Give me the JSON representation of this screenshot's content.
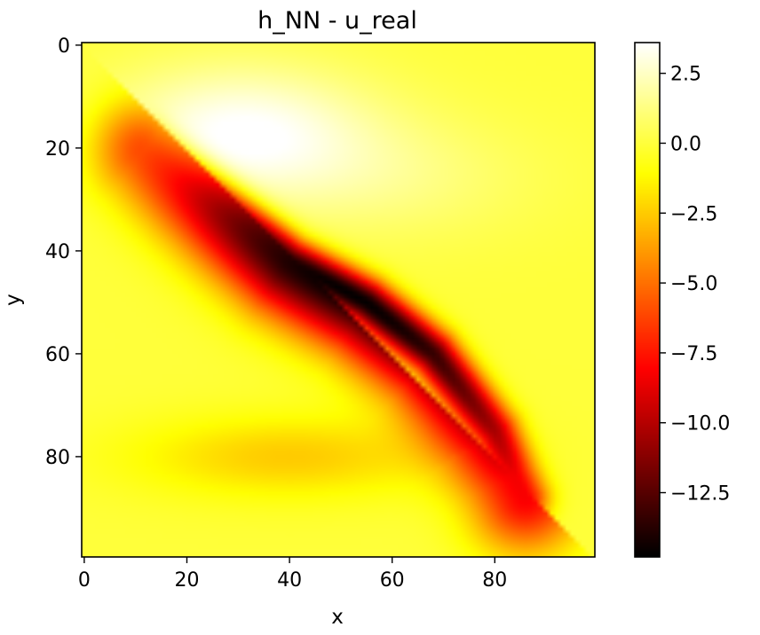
{
  "chart_data": {
    "type": "heatmap",
    "title": "h_NN - u_real",
    "xlabel": "x",
    "ylabel": "y",
    "xlim": [
      0,
      99
    ],
    "ylim": [
      0,
      99
    ],
    "y_inverted": true,
    "x_ticks": [
      "0",
      "20",
      "40",
      "60",
      "80"
    ],
    "y_ticks": [
      "0",
      "20",
      "40",
      "60",
      "80"
    ],
    "colormap": "hot",
    "colorbar": {
      "vmin": -14.8,
      "vmax": 3.6,
      "tick_values": [
        2.5,
        0.0,
        -2.5,
        -5.0,
        -7.5,
        -10.0,
        -12.5
      ],
      "tick_labels": [
        "2.5",
        "0.0",
        "−2.5",
        "−5.0",
        "−7.5",
        "−10.0",
        "−12.5"
      ]
    },
    "field_description": {
      "background_value": 0.0,
      "features": [
        {
          "name": "positive_lobe",
          "center": [
            30,
            17
          ],
          "peak": 3.6
        },
        {
          "name": "negative_trough",
          "path": [
            [
              12,
              20
            ],
            [
              25,
              30
            ],
            [
              40,
              42
            ],
            [
              55,
              50
            ],
            [
              68,
              60
            ],
            [
              80,
              75
            ],
            [
              86,
              88
            ]
          ],
          "min": -14.8
        },
        {
          "name": "lower_band",
          "center": [
            40,
            80
          ],
          "value": -2.5
        }
      ]
    },
    "grid": false,
    "legend": "none"
  }
}
